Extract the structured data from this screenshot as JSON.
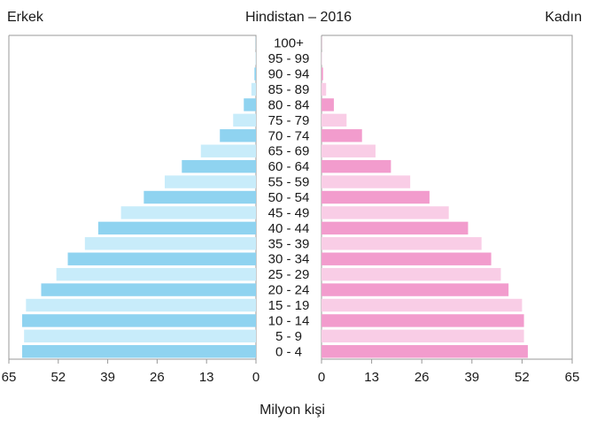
{
  "chart_data": {
    "type": "bar",
    "orientation": "horizontal-pyramid",
    "title": "Hindistan – 2016",
    "left_label": "Erkek",
    "right_label": "Kadın",
    "xlabel": "Milyon kişi",
    "xlim": [
      0,
      65
    ],
    "x_ticks": [
      "65",
      "52",
      "39",
      "26",
      "13",
      "0",
      "0",
      "13",
      "26",
      "39",
      "52",
      "65"
    ],
    "categories": [
      "0 - 4",
      "5 - 9",
      "10 - 14",
      "15 - 19",
      "20 - 24",
      "25 - 29",
      "30 - 34",
      "35 - 39",
      "40 - 44",
      "45 - 49",
      "50 - 54",
      "55 - 59",
      "60 - 64",
      "65 - 69",
      "70 - 74",
      "75 - 79",
      "80 - 84",
      "85 - 89",
      "90 - 94",
      "95 - 99",
      "100+"
    ],
    "series": [
      {
        "name": "Erkek",
        "values": [
          61.5,
          61,
          61.5,
          60.5,
          56.5,
          52.5,
          49.5,
          45,
          41.5,
          35.5,
          29.5,
          24,
          19.5,
          14.5,
          9.5,
          6,
          3.2,
          1.2,
          0.4,
          0.1,
          0.05
        ]
      },
      {
        "name": "Kadın",
        "values": [
          53.5,
          52.5,
          52.5,
          52,
          48.5,
          46.5,
          44,
          41.5,
          38,
          33,
          28,
          23,
          18,
          14,
          10.5,
          6.5,
          3.2,
          1.2,
          0.4,
          0.1,
          0.05
        ]
      }
    ],
    "colors": {
      "male_dark": "#8fd3f0",
      "male_light": "#c8ecfa",
      "female_dark": "#f29ccd",
      "female_light": "#f9cde6",
      "axis": "#999999"
    },
    "grid": false
  }
}
